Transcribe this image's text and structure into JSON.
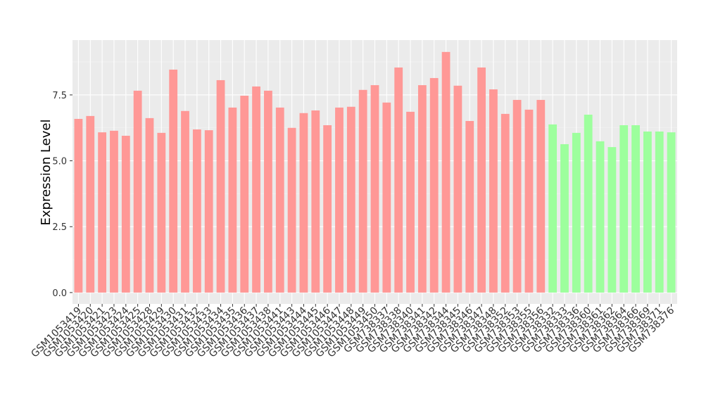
{
  "chart_data": {
    "type": "bar",
    "y_label": "Expression Level",
    "categories": [
      "GSM1053419",
      "GSM1053420",
      "GSM1053421",
      "GSM1053423",
      "GSM1053424",
      "GSM1053425",
      "GSM1053428",
      "GSM1053429",
      "GSM1053430",
      "GSM1053431",
      "GSM1053432",
      "GSM1053433",
      "GSM1053434",
      "GSM1053435",
      "GSM1053436",
      "GSM1053437",
      "GSM1053438",
      "GSM1053441",
      "GSM1053443",
      "GSM1053444",
      "GSM1053445",
      "GSM1053446",
      "GSM1053447",
      "GSM1053448",
      "GSM1053449",
      "GSM1053450",
      "GSM738337",
      "GSM738338",
      "GSM738340",
      "GSM738341",
      "GSM738342",
      "GSM738344",
      "GSM738345",
      "GSM738346",
      "GSM738347",
      "GSM738348",
      "GSM738352",
      "GSM738353",
      "GSM738355",
      "GSM738356",
      "GSM738332",
      "GSM738333",
      "GSM738336",
      "GSM738360",
      "GSM738361",
      "GSM738362",
      "GSM738364",
      "GSM738366",
      "GSM738369",
      "GSM738371",
      "GSM738376"
    ],
    "values": [
      6.59,
      6.7,
      6.08,
      6.14,
      5.95,
      7.66,
      6.62,
      6.06,
      8.46,
      6.89,
      6.19,
      6.16,
      8.06,
      7.02,
      7.47,
      7.82,
      7.66,
      7.02,
      6.25,
      6.81,
      6.91,
      6.35,
      7.02,
      7.05,
      7.69,
      7.87,
      7.21,
      8.54,
      6.86,
      7.87,
      8.14,
      9.13,
      7.85,
      6.51,
      8.54,
      7.71,
      6.78,
      7.31,
      6.94,
      7.31,
      6.38,
      5.63,
      6.06,
      6.75,
      5.74,
      5.52,
      6.35,
      6.35,
      6.11,
      6.11,
      6.08
    ],
    "colors": [
      "#ff9896",
      "#ff9896",
      "#ff9896",
      "#ff9896",
      "#ff9896",
      "#ff9896",
      "#ff9896",
      "#ff9896",
      "#ff9896",
      "#ff9896",
      "#ff9896",
      "#ff9896",
      "#ff9896",
      "#ff9896",
      "#ff9896",
      "#ff9896",
      "#ff9896",
      "#ff9896",
      "#ff9896",
      "#ff9896",
      "#ff9896",
      "#ff9896",
      "#ff9896",
      "#ff9896",
      "#ff9896",
      "#ff9896",
      "#ff9896",
      "#ff9896",
      "#ff9896",
      "#ff9896",
      "#ff9896",
      "#ff9896",
      "#ff9896",
      "#ff9896",
      "#ff9896",
      "#ff9896",
      "#ff9896",
      "#ff9896",
      "#ff9896",
      "#ff9896",
      "#9dff9d",
      "#9dff9d",
      "#9dff9d",
      "#9dff9d",
      "#9dff9d",
      "#9dff9d",
      "#9dff9d",
      "#9dff9d",
      "#9dff9d",
      "#9dff9d",
      "#9dff9d"
    ],
    "ylim": [
      -0.43,
      9.58
    ],
    "yticks": [
      {
        "value": 0,
        "label": "0.0"
      },
      2.5,
      {
        "value": 5,
        "label": "5.0"
      },
      7.5
    ],
    "grid": true
  }
}
